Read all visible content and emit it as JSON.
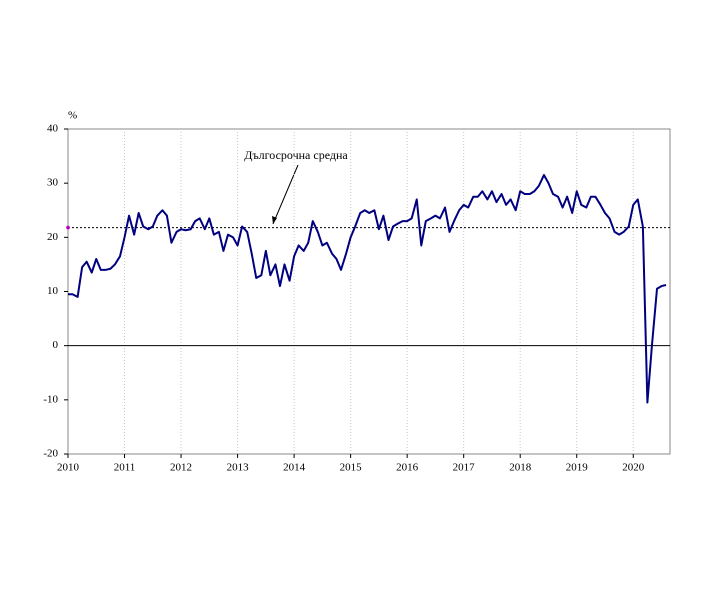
{
  "chart_data": {
    "type": "line",
    "y_label": "%",
    "annotation": "Дългосрочна средна",
    "reference_line": 21.8,
    "color": "#000080",
    "xlim": [
      2010,
      2020.65
    ],
    "ylim": [
      -20,
      40
    ],
    "xticks": [
      2010,
      2011,
      2012,
      2013,
      2014,
      2015,
      2016,
      2017,
      2018,
      2019,
      2020
    ],
    "yticks": [
      -20,
      -10,
      0,
      10,
      20,
      30,
      40
    ],
    "grid": true,
    "x": [
      2010,
      2010.08,
      2010.17,
      2010.25,
      2010.33,
      2010.42,
      2010.5,
      2010.58,
      2010.67,
      2010.75,
      2010.83,
      2010.92,
      2011,
      2011.08,
      2011.17,
      2011.25,
      2011.33,
      2011.42,
      2011.5,
      2011.58,
      2011.67,
      2011.75,
      2011.83,
      2011.92,
      2012,
      2012.08,
      2012.17,
      2012.25,
      2012.33,
      2012.42,
      2012.5,
      2012.58,
      2012.67,
      2012.75,
      2012.83,
      2012.92,
      2013,
      2013.08,
      2013.17,
      2013.25,
      2013.33,
      2013.42,
      2013.5,
      2013.58,
      2013.67,
      2013.75,
      2013.83,
      2013.92,
      2014,
      2014.08,
      2014.17,
      2014.25,
      2014.33,
      2014.42,
      2014.5,
      2014.58,
      2014.67,
      2014.75,
      2014.83,
      2014.92,
      2015,
      2015.08,
      2015.17,
      2015.25,
      2015.33,
      2015.42,
      2015.5,
      2015.58,
      2015.67,
      2015.75,
      2015.83,
      2015.92,
      2016,
      2016.08,
      2016.17,
      2016.25,
      2016.33,
      2016.42,
      2016.5,
      2016.58,
      2016.67,
      2016.75,
      2016.83,
      2016.92,
      2017,
      2017.08,
      2017.17,
      2017.25,
      2017.33,
      2017.42,
      2017.5,
      2017.58,
      2017.67,
      2017.75,
      2017.83,
      2017.92,
      2018,
      2018.08,
      2018.17,
      2018.25,
      2018.33,
      2018.42,
      2018.5,
      2018.58,
      2018.67,
      2018.75,
      2018.83,
      2018.92,
      2019,
      2019.08,
      2019.17,
      2019.25,
      2019.33,
      2019.42,
      2019.5,
      2019.58,
      2019.67,
      2019.75,
      2019.83,
      2019.92,
      2020,
      2020.08,
      2020.17,
      2020.25,
      2020.33,
      2020.42,
      2020.5,
      2020.58
    ],
    "values": [
      9.5,
      9.5,
      9,
      14.5,
      15.5,
      13.5,
      16,
      14,
      14,
      14.2,
      15,
      16.5,
      20,
      24,
      20.5,
      24.5,
      22,
      21.5,
      22,
      24,
      25,
      24,
      19,
      21,
      21.5,
      21.3,
      21.5,
      23,
      23.5,
      21.5,
      23.5,
      20.5,
      21,
      17.5,
      20.5,
      20,
      18.5,
      22,
      21,
      17,
      12.5,
      13,
      17.5,
      13,
      15,
      11,
      15,
      12,
      16.5,
      18.5,
      17.5,
      19,
      23,
      21,
      18.5,
      19,
      17,
      16,
      14,
      17,
      20,
      22,
      24.5,
      25,
      24.5,
      25,
      21.5,
      24,
      19.5,
      22,
      22.5,
      23,
      23,
      23.5,
      27,
      18.5,
      23,
      23.5,
      24,
      23.5,
      25.5,
      21,
      23,
      25,
      26,
      25.5,
      27.5,
      27.5,
      28.5,
      27,
      28.5,
      26.5,
      28,
      26,
      27,
      25,
      28.5,
      28,
      28,
      28.5,
      29.5,
      31.5,
      30,
      28,
      27.5,
      25.5,
      27.5,
      24.5,
      28.5,
      26,
      25.5,
      27.5,
      27.5,
      26,
      24.5,
      23.5,
      21,
      20.5,
      21,
      22,
      26,
      27,
      22,
      -10.5,
      0,
      10.5,
      11,
      11.2
    ]
  }
}
